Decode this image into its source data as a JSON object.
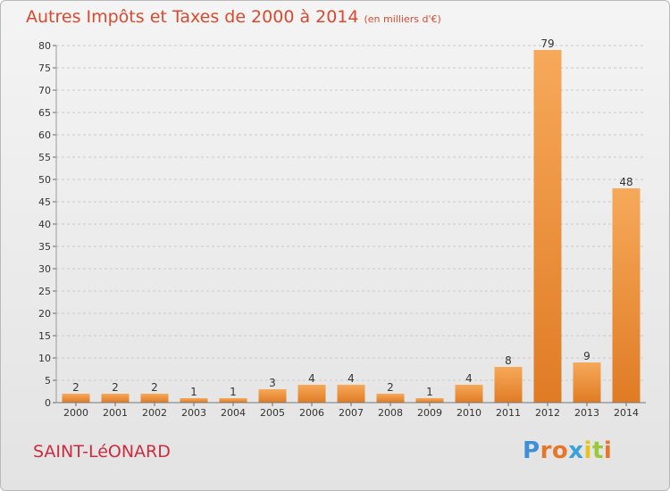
{
  "header": {
    "title": "Autres Impôts et Taxes de 2000 à 2014",
    "unit": "(en milliers d'€)"
  },
  "commune": "SAINT-LéONARD",
  "logo": {
    "text": "Proxiti",
    "letter_colors": [
      "#3f8fd8",
      "#e8762a",
      "#e8762a",
      "#3aa1d9",
      "#e8c21e",
      "#9bc83b",
      "#e8762a"
    ]
  },
  "colors": {
    "bar_light": "#f6a95a",
    "bar_dark": "#e07b25",
    "grid": "#c9c9c9",
    "title": "#d84a2e",
    "commune": "#cc2c3f"
  },
  "chart_data": {
    "type": "bar",
    "categories": [
      "2000",
      "2001",
      "2002",
      "2003",
      "2004",
      "2005",
      "2006",
      "2007",
      "2008",
      "2009",
      "2010",
      "2011",
      "2012",
      "2013",
      "2014"
    ],
    "values": [
      2,
      2,
      2,
      1,
      1,
      3,
      4,
      4,
      2,
      1,
      4,
      8,
      79,
      9,
      48
    ],
    "data_labels": [
      "2",
      "2",
      "2",
      "1",
      "1",
      "3",
      "4",
      "4",
      "2",
      "1",
      "4",
      "8",
      "79",
      "9",
      "48"
    ],
    "yticks": [
      "0",
      "5",
      "10",
      "15",
      "20",
      "25",
      "30",
      "35",
      "40",
      "45",
      "50",
      "55",
      "60",
      "65",
      "70",
      "75",
      "80"
    ],
    "ylim": [
      0,
      80
    ],
    "grid": true,
    "title": "Autres Impôts et Taxes de 2000 à 2014",
    "xlabel": "",
    "ylabel": ""
  }
}
